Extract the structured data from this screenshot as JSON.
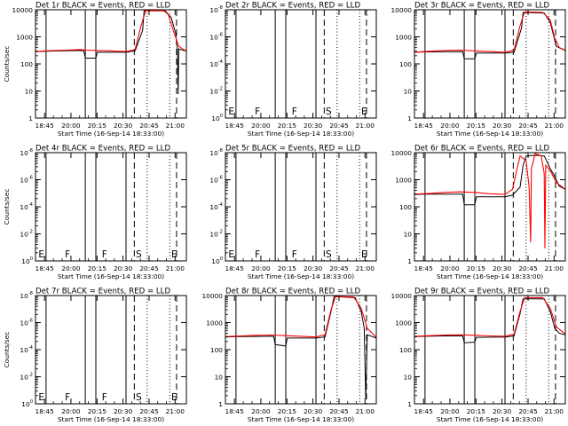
{
  "chart_data": {
    "type": "line",
    "x_tick_labels": [
      "18:45",
      "20:00",
      "20:15",
      "20:30",
      "20:45",
      "21:00"
    ],
    "colors": {
      "events": "#000000",
      "lld": "#ff0000",
      "background": "#ffffff",
      "frame": "#000000"
    },
    "line_styles": {
      "solid_vlines": "attenuator/state change",
      "dashed_vlines": "dashed markers",
      "dotted_vlines": "dotted markers"
    },
    "panels": [
      {
        "title": "Det 1r BLACK = Events, RED = LLD",
        "xlabel": "Start Time (16-Sep-14 18:33:00)",
        "ylabel": "Counts/sec",
        "yscale": "log",
        "y_ticks": [
          {
            "mant": "1"
          },
          {
            "mant": "10"
          },
          {
            "mant": "100"
          },
          {
            "mant": "1000"
          },
          {
            "mant": "10000"
          }
        ],
        "ylim": [
          1,
          12000
        ],
        "has_data": true,
        "markers": [],
        "vlines": {
          "solid": [
            0.07,
            0.33,
            0.4,
            0.6
          ],
          "dashed": [
            0.655,
            0.935
          ],
          "dotted": [
            0.74,
            0.89
          ]
        },
        "events": [
          [
            0,
            320
          ],
          [
            0.07,
            330
          ],
          [
            0.2,
            345
          ],
          [
            0.32,
            350
          ],
          [
            0.33,
            180
          ],
          [
            0.4,
            180
          ],
          [
            0.41,
            300
          ],
          [
            0.6,
            300
          ],
          [
            0.66,
            340
          ],
          [
            0.71,
            2000
          ],
          [
            0.72,
            11000
          ],
          [
            0.86,
            11000
          ],
          [
            0.9,
            6000
          ],
          [
            0.93,
            1500
          ],
          [
            0.935,
            600
          ],
          [
            0.94,
            500
          ],
          [
            0.945,
            8
          ],
          [
            0.95,
            400
          ],
          [
            1.0,
            330
          ]
        ],
        "lld": [
          [
            0,
            320
          ],
          [
            0.07,
            340
          ],
          [
            0.2,
            360
          ],
          [
            0.3,
            380
          ],
          [
            0.33,
            360
          ],
          [
            0.4,
            350
          ],
          [
            0.5,
            340
          ],
          [
            0.6,
            320
          ],
          [
            0.66,
            380
          ],
          [
            0.7,
            3000
          ],
          [
            0.73,
            11000
          ],
          [
            0.85,
            11000
          ],
          [
            0.88,
            8000
          ],
          [
            0.92,
            1500
          ],
          [
            0.95,
            500
          ],
          [
            1.0,
            330
          ]
        ]
      },
      {
        "title": "Det 2r BLACK = Events, RED = LLD",
        "xlabel": "Start Time (16-Sep-14 18:33:00)",
        "ylabel": "",
        "yscale": "log",
        "y_ticks": [
          {
            "mant": "10",
            "exp": "0"
          },
          {
            "mant": "10",
            "exp": "-2"
          },
          {
            "mant": "10",
            "exp": "-4"
          },
          {
            "mant": "10",
            "exp": "-6"
          },
          {
            "mant": "10",
            "exp": "-8"
          }
        ],
        "has_data": false,
        "markers": [
          {
            "label": "E",
            "x": 0.02
          },
          {
            "label": "F",
            "x": 0.195
          },
          {
            "label": "F",
            "x": 0.44
          },
          {
            "label": "S",
            "x": 0.665
          },
          {
            "label": "E",
            "x": 0.9
          }
        ],
        "vlines": {
          "solid": [
            0.07,
            0.33,
            0.4,
            0.6
          ],
          "dashed": [
            0.655,
            0.935
          ],
          "dotted": [
            0.74,
            0.89
          ]
        },
        "events": [],
        "lld": []
      },
      {
        "title": "Det 3r BLACK = Events, RED = LLD",
        "xlabel": "Start Time (16-Sep-14 18:33:00)",
        "ylabel": "",
        "yscale": "log",
        "y_ticks": [
          {
            "mant": "1"
          },
          {
            "mant": "10"
          },
          {
            "mant": "100"
          },
          {
            "mant": "1000"
          },
          {
            "mant": "10000"
          }
        ],
        "ylim": [
          1,
          12000
        ],
        "has_data": true,
        "markers": [],
        "vlines": {
          "solid": [
            0.07,
            0.33,
            0.4,
            0.6
          ],
          "dashed": [
            0.655,
            0.935
          ],
          "dotted": [
            0.74,
            0.89
          ]
        },
        "events": [
          [
            0,
            300
          ],
          [
            0.07,
            310
          ],
          [
            0.2,
            315
          ],
          [
            0.32,
            320
          ],
          [
            0.33,
            170
          ],
          [
            0.4,
            170
          ],
          [
            0.41,
            280
          ],
          [
            0.6,
            280
          ],
          [
            0.66,
            300
          ],
          [
            0.71,
            2500
          ],
          [
            0.72,
            9500
          ],
          [
            0.86,
            9000
          ],
          [
            0.9,
            4000
          ],
          [
            0.94,
            500
          ],
          [
            1.0,
            350
          ]
        ],
        "lld": [
          [
            0,
            300
          ],
          [
            0.1,
            330
          ],
          [
            0.2,
            350
          ],
          [
            0.3,
            360
          ],
          [
            0.4,
            340
          ],
          [
            0.5,
            320
          ],
          [
            0.6,
            300
          ],
          [
            0.66,
            360
          ],
          [
            0.7,
            3000
          ],
          [
            0.73,
            10000
          ],
          [
            0.85,
            9500
          ],
          [
            0.9,
            5000
          ],
          [
            0.93,
            1000
          ],
          [
            0.96,
            450
          ],
          [
            1.0,
            360
          ]
        ]
      },
      {
        "title": "Det 4r BLACK = Events, RED = LLD",
        "xlabel": "Start Time (16-Sep-14 18:33:00)",
        "ylabel": "Counts/sec",
        "yscale": "log",
        "y_ticks": [
          {
            "mant": "10",
            "exp": "0"
          },
          {
            "mant": "10",
            "exp": "-2"
          },
          {
            "mant": "10",
            "exp": "-4"
          },
          {
            "mant": "10",
            "exp": "-6"
          },
          {
            "mant": "10",
            "exp": "-8"
          }
        ],
        "has_data": false,
        "markers": [
          {
            "label": "E",
            "x": 0.02
          },
          {
            "label": "F",
            "x": 0.195
          },
          {
            "label": "F",
            "x": 0.44
          },
          {
            "label": "S",
            "x": 0.665
          },
          {
            "label": "E",
            "x": 0.9
          }
        ],
        "vlines": {
          "solid": [
            0.07,
            0.33,
            0.4,
            0.6
          ],
          "dashed": [
            0.655,
            0.935
          ],
          "dotted": [
            0.74,
            0.89
          ]
        },
        "events": [],
        "lld": []
      },
      {
        "title": "Det 5r BLACK = Events, RED = LLD",
        "xlabel": "Start Time (16-Sep-14 18:33:00)",
        "ylabel": "",
        "yscale": "log",
        "y_ticks": [
          {
            "mant": "10",
            "exp": "0"
          },
          {
            "mant": "10",
            "exp": "-2"
          },
          {
            "mant": "10",
            "exp": "-4"
          },
          {
            "mant": "10",
            "exp": "-6"
          },
          {
            "mant": "10",
            "exp": "-8"
          }
        ],
        "has_data": false,
        "markers": [
          {
            "label": "E",
            "x": 0.02
          },
          {
            "label": "F",
            "x": 0.195
          },
          {
            "label": "F",
            "x": 0.44
          },
          {
            "label": "S",
            "x": 0.665
          },
          {
            "label": "E",
            "x": 0.9
          }
        ],
        "vlines": {
          "solid": [
            0.07,
            0.33,
            0.4,
            0.6
          ],
          "dashed": [
            0.655,
            0.935
          ],
          "dotted": [
            0.74,
            0.89
          ]
        },
        "events": [],
        "lld": []
      },
      {
        "title": "Det 6r BLACK = Events, RED = LLD",
        "xlabel": "Start Time (16-Sep-14 18:33:00)",
        "ylabel": "",
        "yscale": "log",
        "y_ticks": [
          {
            "mant": "1"
          },
          {
            "mant": "10"
          },
          {
            "mant": "100"
          },
          {
            "mant": "1000"
          },
          {
            "mant": "10000"
          }
        ],
        "ylim": [
          1,
          12000
        ],
        "has_data": true,
        "markers": [],
        "vlines": {
          "solid": [
            0.07,
            0.33,
            0.4,
            0.6
          ],
          "dashed": [
            0.655,
            0.935
          ],
          "dotted": [
            0.74,
            0.89
          ]
        },
        "events": [
          [
            0,
            320
          ],
          [
            0.07,
            330
          ],
          [
            0.2,
            330
          ],
          [
            0.32,
            330
          ],
          [
            0.33,
            130
          ],
          [
            0.4,
            130
          ],
          [
            0.41,
            260
          ],
          [
            0.6,
            260
          ],
          [
            0.65,
            300
          ],
          [
            0.7,
            600
          ],
          [
            0.72,
            4000
          ],
          [
            0.74,
            9000
          ],
          [
            0.8,
            9500
          ],
          [
            0.86,
            9000
          ],
          [
            0.9,
            3000
          ],
          [
            0.93,
            1500
          ],
          [
            0.96,
            650
          ],
          [
            1.0,
            500
          ]
        ],
        "lld": [
          [
            0,
            330
          ],
          [
            0.1,
            350
          ],
          [
            0.2,
            380
          ],
          [
            0.3,
            400
          ],
          [
            0.4,
            380
          ],
          [
            0.5,
            340
          ],
          [
            0.6,
            320
          ],
          [
            0.65,
            500
          ],
          [
            0.68,
            3000
          ],
          [
            0.7,
            9000
          ],
          [
            0.74,
            6000
          ],
          [
            0.76,
            600
          ],
          [
            0.77,
            5
          ],
          [
            0.775,
            3000
          ],
          [
            0.8,
            11000
          ],
          [
            0.84,
            9000
          ],
          [
            0.86,
            2000
          ],
          [
            0.865,
            3
          ],
          [
            0.87,
            4000
          ],
          [
            0.9,
            2500
          ],
          [
            0.94,
            900
          ],
          [
            1.0,
            500
          ]
        ]
      },
      {
        "title": "Det 7r BLACK = Events, RED = LLD",
        "xlabel": "Start Time (16-Sep-14 18:33:00)",
        "ylabel": "Counts/sec",
        "yscale": "log",
        "y_ticks": [
          {
            "mant": "10",
            "exp": "0"
          },
          {
            "mant": "10",
            "exp": "-2"
          },
          {
            "mant": "10",
            "exp": "-4"
          },
          {
            "mant": "10",
            "exp": "-6"
          },
          {
            "mant": "10",
            "exp": "-8"
          }
        ],
        "has_data": false,
        "markers": [
          {
            "label": "E",
            "x": 0.02
          },
          {
            "label": "F",
            "x": 0.195
          },
          {
            "label": "F",
            "x": 0.44
          },
          {
            "label": "S",
            "x": 0.665
          },
          {
            "label": "E",
            "x": 0.9
          }
        ],
        "vlines": {
          "solid": [
            0.07,
            0.33,
            0.4,
            0.6
          ],
          "dashed": [
            0.655,
            0.935
          ],
          "dotted": [
            0.74,
            0.89
          ]
        },
        "events": [],
        "lld": []
      },
      {
        "title": "Det 8r BLACK = Events, RED = LLD",
        "xlabel": "Start Time (16-Sep-14 18:33:00)",
        "ylabel": "",
        "yscale": "log",
        "y_ticks": [
          {
            "mant": "1"
          },
          {
            "mant": "10"
          },
          {
            "mant": "100"
          },
          {
            "mant": "1000"
          },
          {
            "mant": "10000"
          }
        ],
        "ylim": [
          1,
          12000
        ],
        "has_data": true,
        "markers": [],
        "vlines": {
          "solid": [
            0.07,
            0.33,
            0.4,
            0.6
          ],
          "dashed": [
            0.655,
            0.935
          ],
          "dotted": [
            0.74,
            0.89
          ]
        },
        "events": [
          [
            0,
            330
          ],
          [
            0.07,
            340
          ],
          [
            0.2,
            345
          ],
          [
            0.32,
            350
          ],
          [
            0.33,
            170
          ],
          [
            0.4,
            150
          ],
          [
            0.41,
            300
          ],
          [
            0.6,
            300
          ],
          [
            0.66,
            330
          ],
          [
            0.7,
            3000
          ],
          [
            0.72,
            11000
          ],
          [
            0.86,
            10000
          ],
          [
            0.9,
            3000
          ],
          [
            0.92,
            700
          ],
          [
            0.93,
            1.5
          ],
          [
            0.94,
            400
          ],
          [
            1.0,
            300
          ]
        ],
        "lld": [
          [
            0,
            340
          ],
          [
            0.1,
            360
          ],
          [
            0.2,
            380
          ],
          [
            0.3,
            390
          ],
          [
            0.4,
            370
          ],
          [
            0.5,
            350
          ],
          [
            0.6,
            330
          ],
          [
            0.66,
            400
          ],
          [
            0.7,
            3500
          ],
          [
            0.73,
            11000
          ],
          [
            0.85,
            10500
          ],
          [
            0.9,
            4000
          ],
          [
            0.94,
            700
          ],
          [
            1.0,
            320
          ]
        ]
      },
      {
        "title": "Det 9r BLACK = Events, RED = LLD",
        "xlabel": "Start Time (16-Sep-14 18:33:00)",
        "ylabel": "",
        "yscale": "log",
        "y_ticks": [
          {
            "mant": "1"
          },
          {
            "mant": "10"
          },
          {
            "mant": "100"
          },
          {
            "mant": "1000"
          },
          {
            "mant": "10000"
          }
        ],
        "ylim": [
          1,
          12000
        ],
        "has_data": true,
        "markers": [],
        "vlines": {
          "solid": [
            0.07,
            0.33,
            0.4,
            0.6
          ],
          "dashed": [
            0.655,
            0.935
          ],
          "dotted": [
            0.74,
            0.89
          ]
        },
        "events": [
          [
            0,
            340
          ],
          [
            0.07,
            350
          ],
          [
            0.2,
            360
          ],
          [
            0.32,
            360
          ],
          [
            0.33,
            200
          ],
          [
            0.4,
            210
          ],
          [
            0.41,
            320
          ],
          [
            0.6,
            330
          ],
          [
            0.66,
            360
          ],
          [
            0.7,
            2500
          ],
          [
            0.72,
            9000
          ],
          [
            0.86,
            9000
          ],
          [
            0.9,
            3000
          ],
          [
            0.93,
            700
          ],
          [
            0.96,
            450
          ],
          [
            1.0,
            400
          ]
        ],
        "lld": [
          [
            0,
            350
          ],
          [
            0.1,
            370
          ],
          [
            0.2,
            390
          ],
          [
            0.3,
            400
          ],
          [
            0.4,
            380
          ],
          [
            0.5,
            360
          ],
          [
            0.6,
            350
          ],
          [
            0.66,
            420
          ],
          [
            0.7,
            3000
          ],
          [
            0.73,
            10000
          ],
          [
            0.85,
            10000
          ],
          [
            0.9,
            4000
          ],
          [
            0.94,
            800
          ],
          [
            1.0,
            420
          ]
        ]
      }
    ]
  }
}
